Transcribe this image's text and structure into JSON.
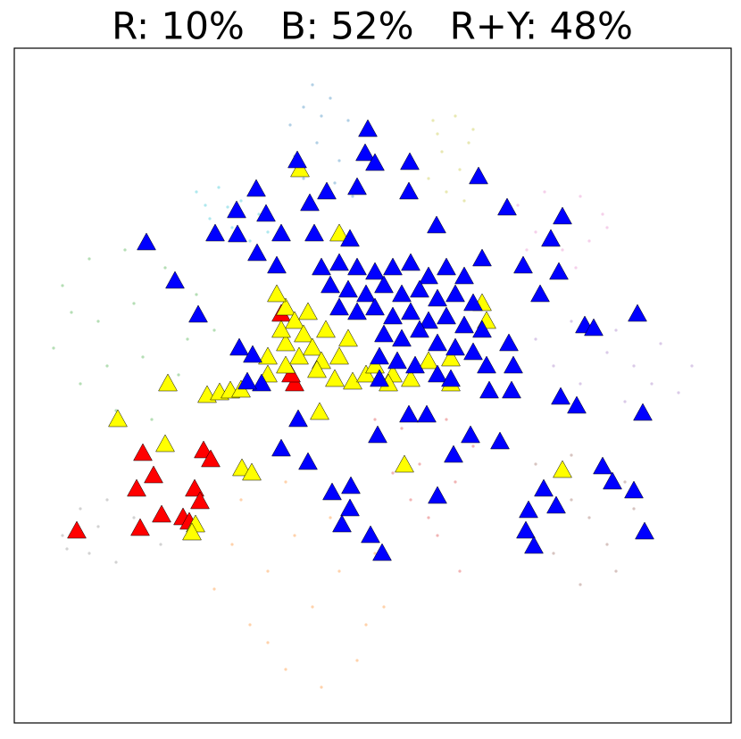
{
  "chart_data": {
    "type": "scatter",
    "title": "R: 10%   B: 52%   R+Y: 48%",
    "xlim": [
      16,
      819
    ],
    "ylim": [
      810,
      54
    ],
    "series": [
      {
        "color": "#1f77b4",
        "marker": "dot",
        "x": [
          350,
          340,
          370,
          325,
          390,
          355,
          380,
          340,
          395,
          360,
          330,
          375
        ],
        "values": [
          95,
          120,
          110,
          140,
          135,
          160,
          180,
          200,
          220,
          130,
          175,
          205
        ]
      },
      {
        "color": "#bcbd22",
        "marker": "dot",
        "x": [
          485,
          510,
          525,
          495,
          515,
          480,
          530,
          500,
          520,
          490
        ],
        "values": [
          135,
          130,
          160,
          170,
          190,
          200,
          145,
          215,
          225,
          150
        ]
      },
      {
        "color": "#17becf",
        "marker": "dot",
        "x": [
          220,
          245,
          270,
          235,
          260,
          290,
          280,
          300,
          230,
          255
        ],
        "values": [
          215,
          210,
          225,
          245,
          255,
          240,
          270,
          260,
          230,
          232
        ]
      },
      {
        "color": "#e377c2",
        "marker": "dot",
        "x": [
          580,
          610,
          650,
          675,
          660,
          630,
          600,
          645,
          680,
          590
        ],
        "values": [
          230,
          215,
          220,
          240,
          270,
          280,
          260,
          300,
          255,
          280
        ]
      },
      {
        "color": "#2ca02c",
        "marker": "dot",
        "x": [
          70,
          100,
          140,
          185,
          220,
          240,
          60,
          90,
          130,
          170,
          200,
          110,
          150,
          160,
          210,
          80,
          120
        ],
        "values": [
          320,
          290,
          280,
          300,
          330,
          370,
          390,
          430,
          460,
          470,
          420,
          360,
          340,
          400,
          380,
          350,
          410
        ]
      },
      {
        "color": "#9467bd",
        "marker": "dot",
        "x": [
          600,
          640,
          690,
          740,
          775,
          760,
          700,
          650,
          620,
          710,
          680,
          730
        ],
        "values": [
          380,
          360,
          370,
          385,
          410,
          440,
          450,
          430,
          410,
          410,
          395,
          430
        ]
      },
      {
        "color": "#d62728",
        "marker": "dot",
        "x": [
          420,
          450,
          500,
          470,
          510,
          460,
          490,
          515,
          440,
          480,
          530
        ],
        "values": [
          470,
          480,
          470,
          520,
          540,
          560,
          600,
          640,
          530,
          580,
          500
        ]
      },
      {
        "color": "#7f7f7f",
        "marker": "dot",
        "x": [
          70,
          90,
          120,
          150,
          180,
          100,
          130,
          75,
          110
        ],
        "values": [
          600,
          570,
          560,
          580,
          610,
          620,
          630,
          615,
          590
        ]
      },
      {
        "color": "#8c564b",
        "marker": "dot",
        "x": [
          600,
          640,
          700,
          720,
          690,
          650,
          620,
          660,
          710,
          640,
          680
        ],
        "values": [
          520,
          510,
          540,
          600,
          640,
          655,
          620,
          580,
          570,
          560,
          610
        ]
      },
      {
        "color": "#ff7f0e",
        "marker": "dot",
        "x": [
          270,
          320,
          370,
          420,
          430,
          400,
          360,
          320,
          280,
          240,
          260,
          300,
          350,
          380,
          330,
          300,
          410
        ],
        "values": [
          560,
          540,
          580,
          620,
          680,
          740,
          770,
          750,
          700,
          660,
          610,
          640,
          680,
          640,
          600,
          720,
          700
        ]
      },
      {
        "color": "#ff0000",
        "marker": "triangle",
        "x": [
          86,
          160,
          228,
          236,
          172,
          153,
          218,
          224,
          181,
          157,
          205,
          212,
          330,
          326,
          315
        ],
        "values": [
          595,
          508,
          505,
          515,
          533,
          548,
          548,
          562,
          577,
          592,
          580,
          585,
          430,
          420,
          352
        ]
      },
      {
        "color": "#ffff00",
        "marker": "triangle",
        "x": [
          336,
          380,
          188,
          232,
          246,
          258,
          270,
          132,
          185,
          271,
          282,
          453,
          630,
          358,
          219,
          215,
          320,
          330,
          340,
          350,
          360,
          375,
          395,
          410,
          320,
          335,
          355,
          380,
          300,
          440,
          460,
          420,
          505,
          540,
          545,
          505,
          390,
          365,
          345,
          310,
          435,
          480,
          320,
          300,
          315
        ],
        "values": [
          190,
          262,
          430,
          443,
          440,
          438,
          437,
          470,
          498,
          525,
          530,
          521,
          527,
          462,
          588,
          597,
          345,
          360,
          375,
          390,
          405,
          425,
          428,
          420,
          385,
          400,
          415,
          400,
          420,
          420,
          425,
          410,
          430,
          340,
          360,
          402,
          380,
          370,
          350,
          330,
          430,
          405,
          410,
          400,
          370
        ]
      },
      {
        "color": "#0000ff",
        "marker": "triangle",
        "x": [
          412,
          333,
          409,
          420,
          459,
          536,
          287,
          366,
          347,
          400,
          458,
          265,
          298,
          568,
          630,
          241,
          266,
          315,
          352,
          392,
          489,
          617,
          164,
          288,
          310,
          196,
          540,
          586,
          626,
          605,
          222,
          268,
          283,
          293,
          277,
          655,
          714,
          665,
          570,
          575,
          548,
          573,
          628,
          646,
          720,
          458,
          478,
          334,
          423,
          527,
          560,
          508,
          315,
          345,
          372,
          393,
          609,
          592,
          623,
          675,
          686,
          710,
          392,
          383,
          415,
          428,
          589,
          598,
          722,
          490,
          360,
          380,
          400,
          420,
          440,
          460,
          480,
          500,
          520,
          370,
          390,
          410,
          430,
          450,
          470,
          490,
          510,
          530,
          380,
          400,
          420,
          440,
          460,
          480,
          500,
          520,
          540,
          430,
          450,
          470,
          490,
          510,
          530,
          425,
          445,
          465,
          490,
          505,
          425,
          545
        ],
        "values": [
          145,
          180,
          172,
          183,
          182,
          198,
          212,
          215,
          228,
          210,
          215,
          236,
          240,
          233,
          243,
          262,
          263,
          262,
          262,
          268,
          253,
          268,
          272,
          284,
          298,
          315,
          290,
          298,
          305,
          330,
          353,
          390,
          398,
          430,
          428,
          365,
          352,
          368,
          385,
          410,
          438,
          438,
          445,
          455,
          463,
          465,
          465,
          470,
          488,
          488,
          495,
          510,
          503,
          518,
          552,
          545,
          548,
          572,
          567,
          523,
          540,
          550,
          570,
          588,
          600,
          620,
          595,
          612,
          596,
          556,
          300,
          295,
          300,
          305,
          300,
          295,
          310,
          300,
          310,
          320,
          325,
          330,
          320,
          330,
          325,
          335,
          330,
          340,
          345,
          350,
          345,
          355,
          350,
          360,
          355,
          365,
          370,
          375,
          380,
          370,
          385,
          390,
          395,
          400,
          405,
          410,
          420,
          425,
          425,
          410
        ]
      }
    ]
  }
}
